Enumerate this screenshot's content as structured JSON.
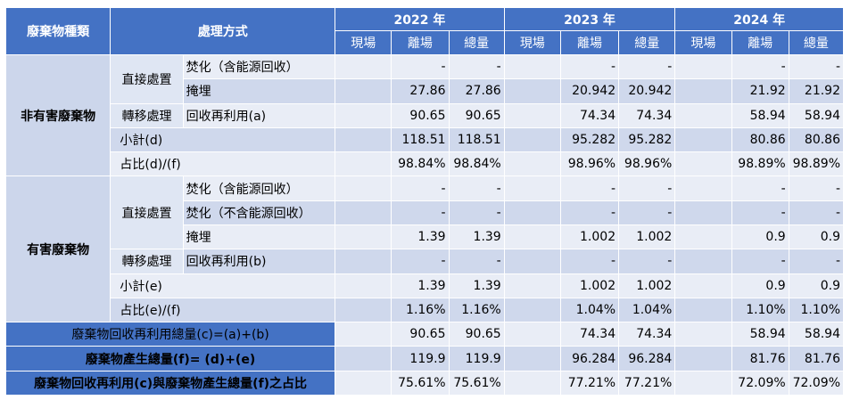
{
  "header": {
    "category": "廢棄物種類",
    "method": "處理方式",
    "years": [
      "2022 年",
      "2023 年",
      "2024 年"
    ],
    "sub": [
      "現場",
      "離場",
      "總量"
    ]
  },
  "groups": {
    "nonhaz": "非有害廢棄物",
    "haz": "有害廢棄物"
  },
  "subgroups": {
    "direct": "直接處置",
    "transfer": "轉移處理"
  },
  "rows": [
    {
      "label": "焚化（含能源回收）",
      "v": [
        "",
        "-",
        "-",
        "",
        "-",
        "-",
        "",
        "-",
        "-"
      ]
    },
    {
      "label": "掩埋",
      "v": [
        "",
        "27.86",
        "27.86",
        "",
        "20.942",
        "20.942",
        "",
        "21.92",
        "21.92"
      ]
    },
    {
      "label": "回收再利用(a)",
      "v": [
        "",
        "90.65",
        "90.65",
        "",
        "74.34",
        "74.34",
        "",
        "58.94",
        "58.94"
      ]
    },
    {
      "label": "小計(d)",
      "v": [
        "",
        "118.51",
        "118.51",
        "",
        "95.282",
        "95.282",
        "",
        "80.86",
        "80.86"
      ]
    },
    {
      "label": "占比(d)/(f)",
      "v": [
        "",
        "98.84%",
        "98.84%",
        "",
        "98.96%",
        "98.96%",
        "",
        "98.89%",
        "98.89%"
      ]
    },
    {
      "label": "焚化（含能源回收）",
      "v": [
        "",
        "-",
        "-",
        "",
        "-",
        "-",
        "",
        "-",
        "-"
      ]
    },
    {
      "label": "焚化（不含能源回收）",
      "v": [
        "",
        "-",
        "-",
        "",
        "-",
        "-",
        "",
        "-",
        "-"
      ]
    },
    {
      "label": "掩埋",
      "v": [
        "",
        "1.39",
        "1.39",
        "",
        "1.002",
        "1.002",
        "",
        "0.9",
        "0.9"
      ]
    },
    {
      "label": "回收再利用(b)",
      "v": [
        "",
        "-",
        "-",
        "",
        "-",
        "-",
        "",
        "-",
        "-"
      ]
    },
    {
      "label": "小計(e)",
      "v": [
        "",
        "1.39",
        "1.39",
        "",
        "1.002",
        "1.002",
        "",
        "0.9",
        "0.9"
      ]
    },
    {
      "label": "占比(e)/(f)",
      "v": [
        "",
        "1.16%",
        "1.16%",
        "",
        "1.04%",
        "1.04%",
        "",
        "1.10%",
        "1.10%"
      ]
    }
  ],
  "summary": [
    {
      "label": "廢棄物回收再利用總量(c)=(a)+(b)",
      "v": [
        "",
        "90.65",
        "90.65",
        "",
        "74.34",
        "74.34",
        "",
        "58.94",
        "58.94"
      ]
    },
    {
      "label": "廢棄物產生總量(f)= (d)+(e)",
      "v": [
        "",
        "119.9",
        "119.9",
        "",
        "96.284",
        "96.284",
        "",
        "81.76",
        "81.76"
      ]
    },
    {
      "label": "廢棄物回收再利用(c)與廢棄物產生總量(f)之占比",
      "v": [
        "",
        "75.61%",
        "75.61%",
        "",
        "77.21%",
        "77.21%",
        "",
        "72.09%",
        "72.09%"
      ]
    }
  ]
}
